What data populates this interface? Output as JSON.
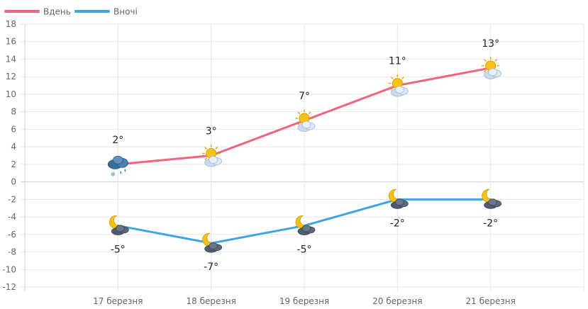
{
  "chart_data": {
    "type": "line",
    "title": "",
    "xlabel": "",
    "ylabel": "",
    "ylim": [
      -12,
      18
    ],
    "y_ticks": [
      18,
      16,
      14,
      12,
      10,
      8,
      6,
      4,
      2,
      0,
      -2,
      -4,
      -6,
      -8,
      -10,
      -12
    ],
    "grid": true,
    "legend_position": "top-left",
    "categories": [
      "17 березня",
      "18 березня",
      "19 березня",
      "20 березня",
      "21 березня"
    ],
    "series": [
      {
        "name": "Вдень",
        "color": "#f0647e",
        "values": [
          2,
          3,
          7,
          11,
          13
        ],
        "labels": [
          "2°",
          "3°",
          "7°",
          "11°",
          "13°"
        ],
        "label_position": "above",
        "icons": [
          "rain-snow-cloud-icon",
          "sun-cloud-icon",
          "sun-cloud-icon",
          "sun-cloud-icon",
          "sun-cloud-icon"
        ]
      },
      {
        "name": "Вночі",
        "color": "#3ea6df",
        "values": [
          -5,
          -7,
          -5,
          -2,
          -2
        ],
        "labels": [
          "-5°",
          "-7°",
          "-5°",
          "-2°",
          "-2°"
        ],
        "label_position": "below",
        "icons": [
          "moon-cloud-icon",
          "moon-cloud-icon",
          "moon-cloud-icon",
          "moon-cloud-icon",
          "moon-cloud-icon"
        ]
      }
    ]
  }
}
